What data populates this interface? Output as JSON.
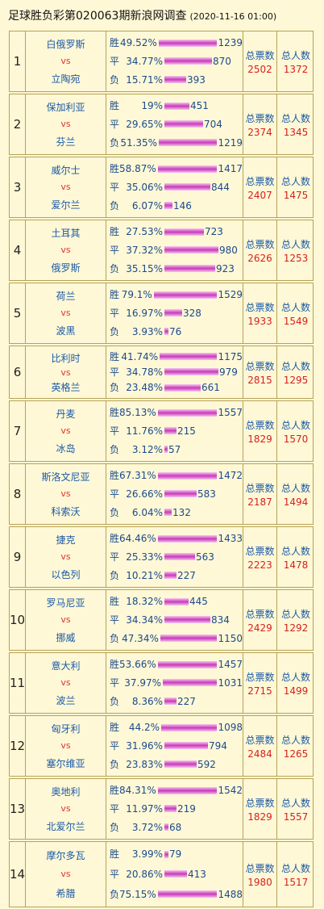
{
  "header": {
    "title": "足球胜负彩第020063期新浪网调查",
    "timestamp": "(2020-11-16 01:00)"
  },
  "labels": {
    "win": "胜",
    "draw": "平",
    "lose": "负",
    "vs": "vs",
    "total_votes": "总票数",
    "total_people": "总人数"
  },
  "matches": [
    {
      "no": "1",
      "home": "白俄罗斯",
      "away": "立陶宛",
      "win_pct": "49.52%",
      "win": 1239,
      "draw_pct": "34.77%",
      "draw": 870,
      "lose_pct": "15.71%",
      "lose": 393,
      "total": "2502",
      "people": "1372"
    },
    {
      "no": "2",
      "home": "保加利亚",
      "away": "芬兰",
      "win_pct": "19%",
      "win": 451,
      "draw_pct": "29.65%",
      "draw": 704,
      "lose_pct": "51.35%",
      "lose": 1219,
      "total": "2374",
      "people": "1345"
    },
    {
      "no": "3",
      "home": "威尔士",
      "away": "爱尔兰",
      "win_pct": "58.87%",
      "win": 1417,
      "draw_pct": "35.06%",
      "draw": 844,
      "lose_pct": "6.07%",
      "lose": 146,
      "total": "2407",
      "people": "1475"
    },
    {
      "no": "4",
      "home": "土耳其",
      "away": "俄罗斯",
      "win_pct": "27.53%",
      "win": 723,
      "draw_pct": "37.32%",
      "draw": 980,
      "lose_pct": "35.15%",
      "lose": 923,
      "total": "2626",
      "people": "1253"
    },
    {
      "no": "5",
      "home": "荷兰",
      "away": "波黑",
      "win_pct": "79.1%",
      "win": 1529,
      "draw_pct": "16.97%",
      "draw": 328,
      "lose_pct": "3.93%",
      "lose": 76,
      "total": "1933",
      "people": "1549"
    },
    {
      "no": "6",
      "home": "比利时",
      "away": "英格兰",
      "win_pct": "41.74%",
      "win": 1175,
      "draw_pct": "34.78%",
      "draw": 979,
      "lose_pct": "23.48%",
      "lose": 661,
      "total": "2815",
      "people": "1295"
    },
    {
      "no": "7",
      "home": "丹麦",
      "away": "冰岛",
      "win_pct": "85.13%",
      "win": 1557,
      "draw_pct": "11.76%",
      "draw": 215,
      "lose_pct": "3.12%",
      "lose": 57,
      "total": "1829",
      "people": "1570"
    },
    {
      "no": "8",
      "home": "斯洛文尼亚",
      "away": "科索沃",
      "win_pct": "67.31%",
      "win": 1472,
      "draw_pct": "26.66%",
      "draw": 583,
      "lose_pct": "6.04%",
      "lose": 132,
      "total": "2187",
      "people": "1494"
    },
    {
      "no": "9",
      "home": "捷克",
      "away": "以色列",
      "win_pct": "64.46%",
      "win": 1433,
      "draw_pct": "25.33%",
      "draw": 563,
      "lose_pct": "10.21%",
      "lose": 227,
      "total": "2223",
      "people": "1478"
    },
    {
      "no": "10",
      "home": "罗马尼亚",
      "away": "挪威",
      "win_pct": "18.32%",
      "win": 445,
      "draw_pct": "34.34%",
      "draw": 834,
      "lose_pct": "47.34%",
      "lose": 1150,
      "total": "2429",
      "people": "1292"
    },
    {
      "no": "11",
      "home": "意大利",
      "away": "波兰",
      "win_pct": "53.66%",
      "win": 1457,
      "draw_pct": "37.97%",
      "draw": 1031,
      "lose_pct": "8.36%",
      "lose": 227,
      "total": "2715",
      "people": "1499"
    },
    {
      "no": "12",
      "home": "匈牙利",
      "away": "塞尔维亚",
      "win_pct": "44.2%",
      "win": 1098,
      "draw_pct": "31.96%",
      "draw": 794,
      "lose_pct": "23.83%",
      "lose": 592,
      "total": "2484",
      "people": "1265"
    },
    {
      "no": "13",
      "home": "奥地利",
      "away": "北爱尔兰",
      "win_pct": "84.31%",
      "win": 1542,
      "draw_pct": "11.97%",
      "draw": 219,
      "lose_pct": "3.72%",
      "lose": 68,
      "total": "1829",
      "people": "1557"
    },
    {
      "no": "14",
      "home": "摩尔多瓦",
      "away": "希腊",
      "win_pct": "3.99%",
      "win": 79,
      "draw_pct": "20.86%",
      "draw": 413,
      "lose_pct": "75.15%",
      "lose": 1488,
      "total": "1980",
      "people": "1517"
    }
  ]
}
